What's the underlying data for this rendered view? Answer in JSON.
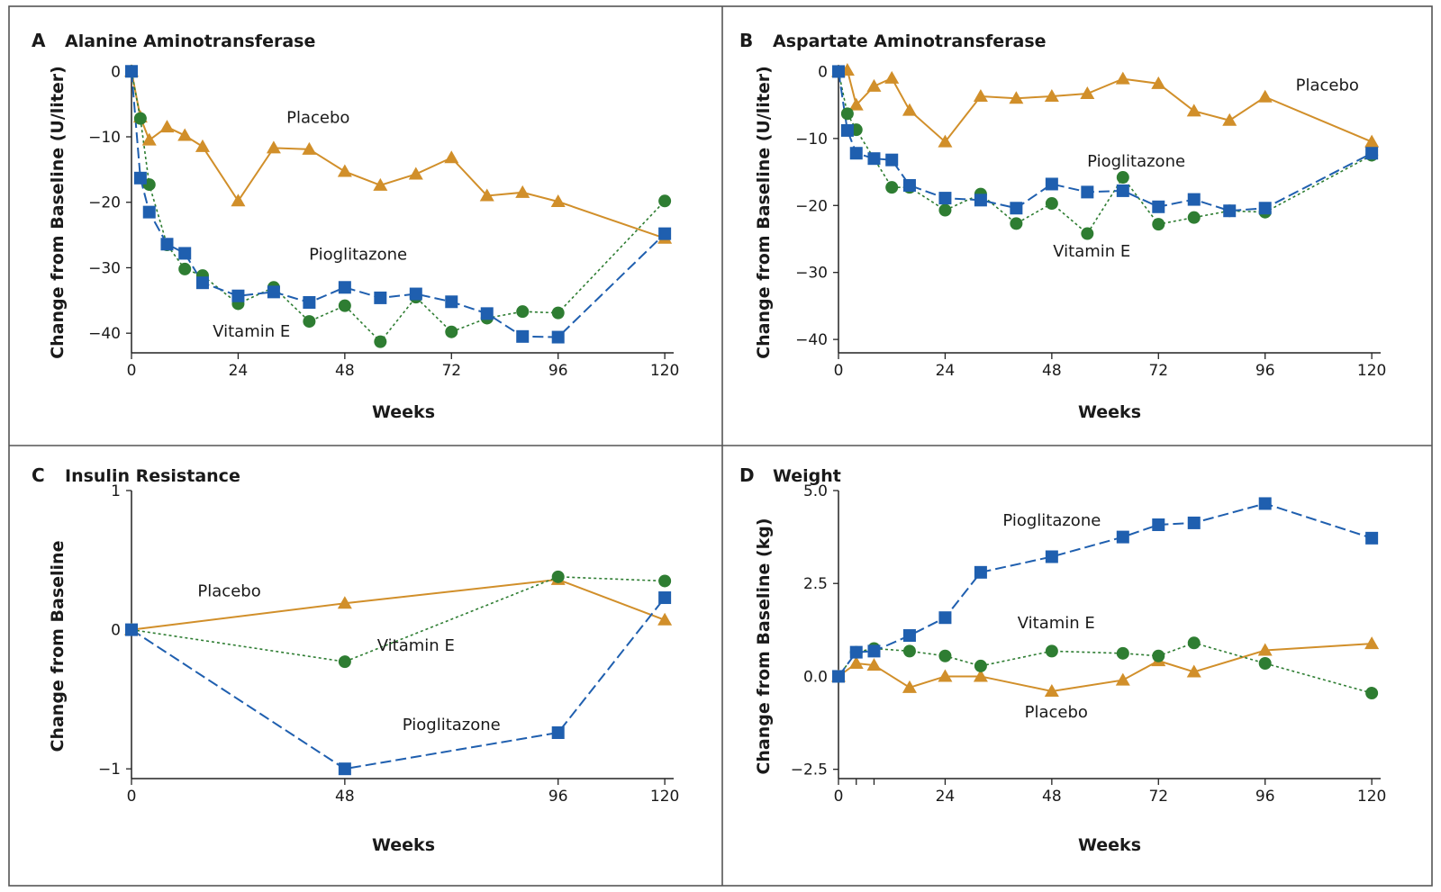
{
  "colors": {
    "placebo": "#D18F2A",
    "vitamin_e": "#2E7D32",
    "pioglitazone": "#1F5FAF",
    "frame": "#555555"
  },
  "chart_data": [
    {
      "panel": "A",
      "type": "line",
      "title": "Alanine Aminotransferase",
      "xlabel": "Weeks",
      "ylabel": "Change from Baseline (U/liter)",
      "xlim": [
        0,
        122
      ],
      "ylim": [
        -43,
        1
      ],
      "xticks": [
        0,
        24,
        48,
        72,
        96,
        120
      ],
      "yticks": [
        0,
        -10,
        -20,
        -30,
        -40
      ],
      "ytick_labels": [
        "0",
        "−10",
        "−20",
        "−30",
        "−40"
      ],
      "series": [
        {
          "name": "Placebo",
          "key": "placebo",
          "marker": "triangle",
          "dash": "none",
          "x": [
            0,
            2,
            4,
            8,
            12,
            16,
            24,
            32,
            40,
            48,
            56,
            64,
            72,
            80,
            88,
            96,
            120
          ],
          "y": [
            0,
            -7,
            -10.5,
            -8.5,
            -9.8,
            -11.5,
            -19.8,
            -11.7,
            -11.9,
            -15.3,
            -17.4,
            -15.7,
            -13.2,
            -19,
            -18.5,
            -19.9,
            -25.5
          ]
        },
        {
          "name": "Vitamin E",
          "key": "vitamin_e",
          "marker": "circle",
          "dash": "3,3",
          "x": [
            0,
            2,
            4,
            8,
            12,
            16,
            24,
            32,
            40,
            48,
            56,
            64,
            72,
            80,
            88,
            96,
            120
          ],
          "y": [
            0,
            -7.2,
            -17.3,
            -26.5,
            -30.2,
            -31.2,
            -35.5,
            -33,
            -38.2,
            -35.8,
            -41.3,
            -34.5,
            -39.8,
            -37.7,
            -36.7,
            -36.9,
            -19.8
          ]
        },
        {
          "name": "Pioglitazone",
          "key": "pioglitazone",
          "marker": "square",
          "dash": "12,5",
          "x": [
            0,
            2,
            4,
            8,
            12,
            16,
            24,
            32,
            40,
            48,
            56,
            64,
            72,
            80,
            88,
            96,
            120
          ],
          "y": [
            0,
            -16.3,
            -21.5,
            -26.4,
            -27.8,
            -32.3,
            -34.3,
            -33.7,
            -35.3,
            -33,
            -34.6,
            -34,
            -35.2,
            -37,
            -40.5,
            -40.6,
            -24.8
          ]
        }
      ],
      "annotations": [
        {
          "text": "Placebo",
          "x": 42,
          "y": -7.9
        },
        {
          "text": "Pioglitazone",
          "x": 51,
          "y": -28.8
        },
        {
          "text": "Vitamin E",
          "x": 27,
          "y": -40.5
        }
      ]
    },
    {
      "panel": "B",
      "type": "line",
      "title": "Aspartate Aminotransferase",
      "xlabel": "Weeks",
      "ylabel": "Change from Baseline (U/liter)",
      "xlim": [
        0,
        122
      ],
      "ylim": [
        -42,
        1
      ],
      "xticks": [
        0,
        24,
        48,
        72,
        96,
        120
      ],
      "yticks": [
        0,
        -10,
        -20,
        -30,
        -40
      ],
      "ytick_labels": [
        "0",
        "−10",
        "−20",
        "−30",
        "−40"
      ],
      "series": [
        {
          "name": "Placebo",
          "key": "placebo",
          "marker": "triangle",
          "dash": "none",
          "x": [
            0,
            2,
            4,
            8,
            12,
            16,
            24,
            32,
            40,
            48,
            56,
            64,
            72,
            80,
            88,
            96,
            120
          ],
          "y": [
            0,
            0.2,
            -5,
            -2.2,
            -1,
            -5.8,
            -10.5,
            -3.7,
            -4,
            -3.7,
            -3.3,
            -1.1,
            -1.8,
            -5.9,
            -7.3,
            -3.8,
            -10.5
          ]
        },
        {
          "name": "Vitamin E",
          "key": "vitamin_e",
          "marker": "circle",
          "dash": "3,3",
          "x": [
            0,
            2,
            4,
            12,
            16,
            24,
            32,
            40,
            48,
            56,
            64,
            72,
            80,
            88,
            96,
            120
          ],
          "y": [
            0,
            -6.3,
            -8.7,
            -17.3,
            -17.3,
            -20.7,
            -18.3,
            -22.7,
            -19.7,
            -24.2,
            -15.8,
            -22.8,
            -21.8,
            -20.8,
            -21,
            -12.5
          ]
        },
        {
          "name": "Pioglitazone",
          "key": "pioglitazone",
          "marker": "square",
          "dash": "12,5",
          "x": [
            0,
            2,
            4,
            8,
            12,
            16,
            24,
            32,
            40,
            48,
            56,
            64,
            72,
            80,
            88,
            96,
            120
          ],
          "y": [
            0,
            -8.8,
            -12.2,
            -13,
            -13.2,
            -17,
            -18.9,
            -19.2,
            -20.4,
            -16.8,
            -18,
            -17.8,
            -20.2,
            -19.1,
            -20.8,
            -20.4,
            -12.2
          ]
        }
      ],
      "annotations": [
        {
          "text": "Placebo",
          "x": 110,
          "y": -2.8
        },
        {
          "text": "Pioglitazone",
          "x": 67,
          "y": -14.2
        },
        {
          "text": "Vitamin E",
          "x": 57,
          "y": -27.6
        }
      ]
    },
    {
      "panel": "C",
      "type": "line",
      "title": "Insulin Resistance",
      "xlabel": "Weeks",
      "ylabel": "Change from Baseline",
      "xlim": [
        0,
        122
      ],
      "ylim": [
        -1.07,
        1
      ],
      "xticks": [
        0,
        48,
        96,
        120
      ],
      "yticks": [
        1,
        0,
        -1
      ],
      "ytick_labels": [
        "1",
        "0",
        "−1"
      ],
      "series": [
        {
          "name": "Placebo",
          "key": "placebo",
          "marker": "triangle",
          "dash": "none",
          "x": [
            0,
            48,
            96,
            120
          ],
          "y": [
            0,
            0.19,
            0.36,
            0.07
          ]
        },
        {
          "name": "Vitamin E",
          "key": "vitamin_e",
          "marker": "circle",
          "dash": "3,3",
          "x": [
            0,
            48,
            96,
            120
          ],
          "y": [
            0,
            -0.23,
            0.38,
            0.35
          ]
        },
        {
          "name": "Pioglitazone",
          "key": "pioglitazone",
          "marker": "square",
          "dash": "12,5",
          "x": [
            0,
            48,
            96,
            120
          ],
          "y": [
            0,
            -1,
            -0.74,
            0.23
          ]
        }
      ],
      "annotations": [
        {
          "text": "Placebo",
          "x": 22,
          "y": 0.24
        },
        {
          "text": "Vitamin E",
          "x": 64,
          "y": -0.15
        },
        {
          "text": "Pioglitazone",
          "x": 72,
          "y": -0.72
        }
      ]
    },
    {
      "panel": "D",
      "type": "line",
      "title": "Weight",
      "xlabel": "Weeks",
      "ylabel": "Change from Baseline (kg)",
      "xlim": [
        0,
        122
      ],
      "ylim": [
        -2.75,
        5
      ],
      "xticks": [
        0,
        4,
        8,
        24,
        48,
        72,
        96,
        120
      ],
      "xtick_labels": [
        "0",
        "",
        "",
        "24",
        "48",
        "72",
        "96",
        "120"
      ],
      "yticks": [
        5,
        2.5,
        0,
        -2.5
      ],
      "ytick_labels": [
        "5.0",
        "2.5",
        "0.0",
        "−2.5"
      ],
      "series": [
        {
          "name": "Placebo",
          "key": "placebo",
          "marker": "triangle",
          "dash": "none",
          "x": [
            0,
            4,
            8,
            16,
            24,
            32,
            48,
            64,
            72,
            80,
            96,
            120
          ],
          "y": [
            0,
            0.35,
            0.3,
            -0.3,
            0,
            0,
            -0.4,
            -0.1,
            0.42,
            0.12,
            0.7,
            0.88
          ]
        },
        {
          "name": "Vitamin E",
          "key": "vitamin_e",
          "marker": "circle",
          "dash": "3,3",
          "x": [
            0,
            4,
            8,
            16,
            24,
            32,
            48,
            64,
            72,
            80,
            96,
            120
          ],
          "y": [
            0,
            0.65,
            0.75,
            0.68,
            0.55,
            0.28,
            0.68,
            0.62,
            0.55,
            0.9,
            0.35,
            -0.45
          ]
        },
        {
          "name": "Pioglitazone",
          "key": "pioglitazone",
          "marker": "square",
          "dash": "12,5",
          "x": [
            0,
            4,
            8,
            16,
            24,
            32,
            48,
            64,
            72,
            80,
            96,
            120
          ],
          "y": [
            0,
            0.65,
            0.68,
            1.1,
            1.58,
            2.8,
            3.22,
            3.75,
            4.08,
            4.13,
            4.65,
            3.72
          ]
        }
      ],
      "annotations": [
        {
          "text": "Pioglitazone",
          "x": 48,
          "y": 4.05
        },
        {
          "text": "Vitamin E",
          "x": 49,
          "y": 1.3
        },
        {
          "text": "Placebo",
          "x": 49,
          "y": -1.1
        }
      ]
    }
  ]
}
